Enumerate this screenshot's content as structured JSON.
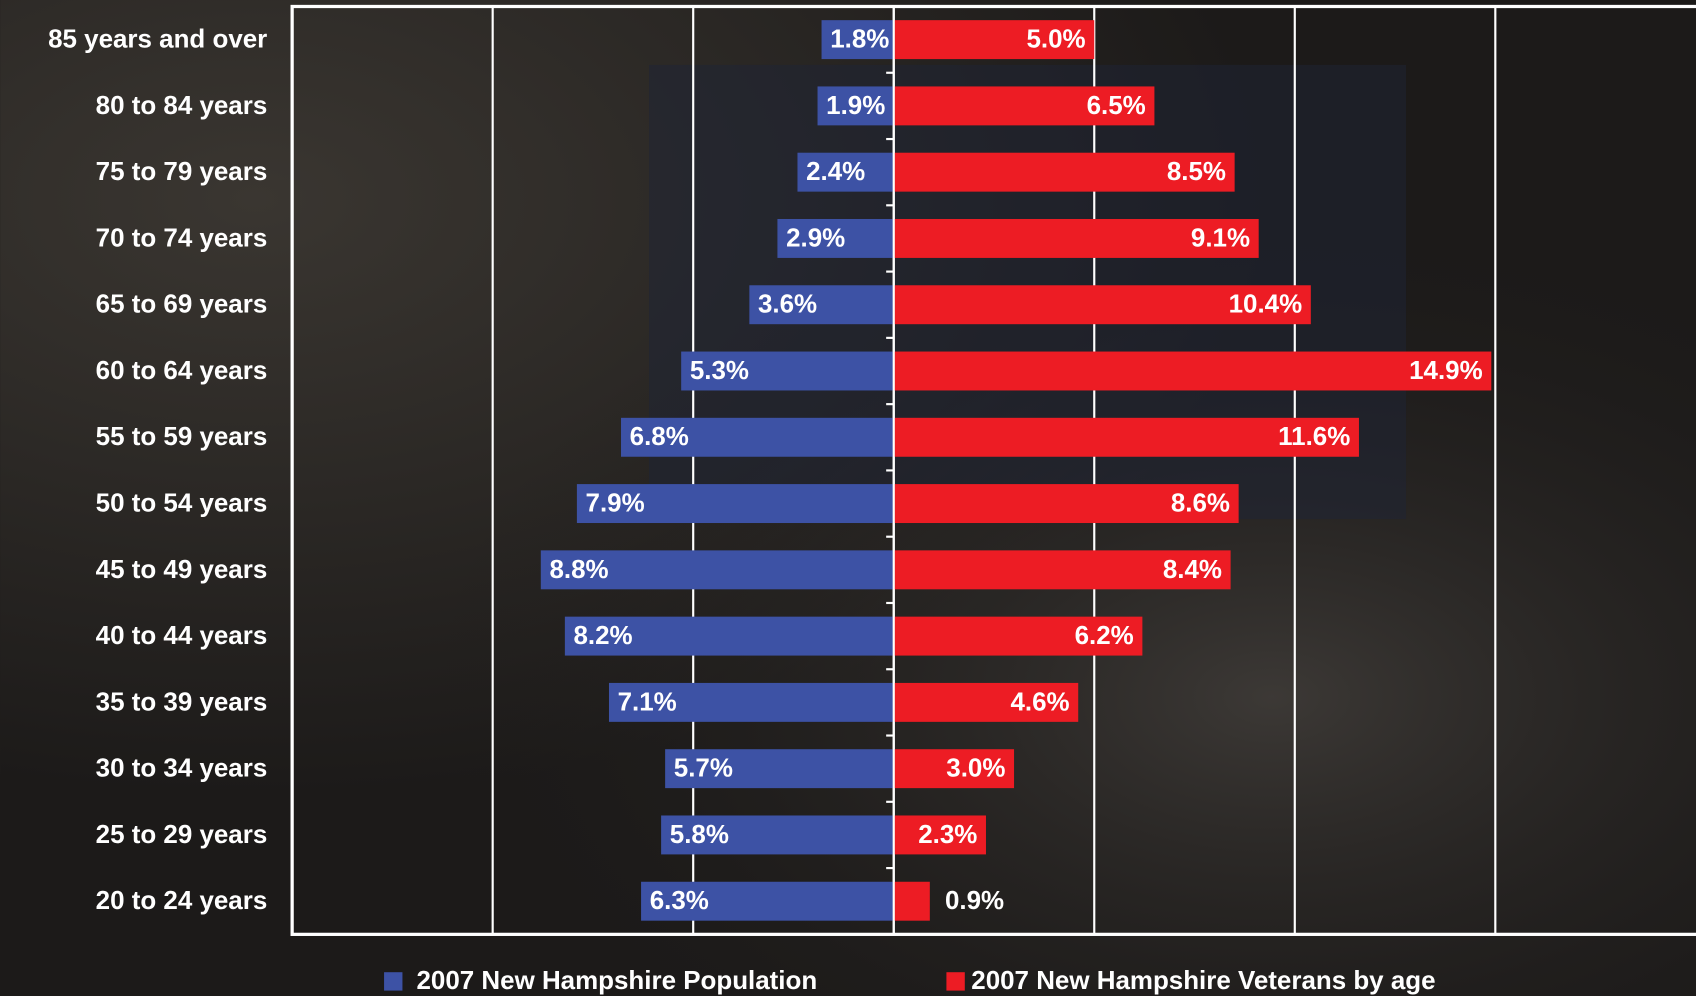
{
  "chart_data": {
    "type": "bar",
    "orientation": "diverging-horizontal",
    "categories": [
      "85 years and over",
      "80 to 84 years",
      "75 to 79 years",
      "70 to 74 years",
      "65 to 69 years",
      "60 to 64 years",
      "55 to 59 years",
      "50 to 54 years",
      "45 to 49 years",
      "40 to 44 years",
      "35 to 39 years",
      "30 to 34 years",
      "25 to 29 years",
      "20 to 24 years"
    ],
    "series": [
      {
        "name": "2007 New Hampshire Population",
        "color": "#3d52a5",
        "side": "left",
        "values": [
          1.8,
          1.9,
          2.4,
          2.9,
          3.6,
          5.3,
          6.8,
          7.9,
          8.8,
          8.2,
          7.1,
          5.7,
          5.8,
          6.3
        ],
        "value_labels": [
          "1.8%",
          "1.9%",
          "2.4%",
          "2.9%",
          "3.6%",
          "5.3%",
          "6.8%",
          "7.9%",
          "8.8%",
          "8.2%",
          "7.1%",
          "5.7%",
          "5.8%",
          "6.3%"
        ]
      },
      {
        "name": "2007 New Hampshire Veterans by age",
        "color": "#ed1c24",
        "side": "right",
        "values": [
          5.0,
          6.5,
          8.5,
          9.1,
          10.4,
          14.9,
          11.6,
          8.6,
          8.4,
          6.2,
          4.6,
          3.0,
          2.3,
          0.9
        ],
        "value_labels": [
          "5.0%",
          "6.5%",
          "8.5%",
          "9.1%",
          "10.4%",
          "14.9%",
          "11.6%",
          "8.6%",
          "8.4%",
          "6.2%",
          "4.6%",
          "3.0%",
          "2.3%",
          "0.9%"
        ]
      }
    ],
    "xlim": [
      -15,
      20
    ],
    "xticks": [
      -10,
      -5,
      0,
      5,
      10,
      15
    ],
    "grid": true,
    "legend": "bottom"
  }
}
